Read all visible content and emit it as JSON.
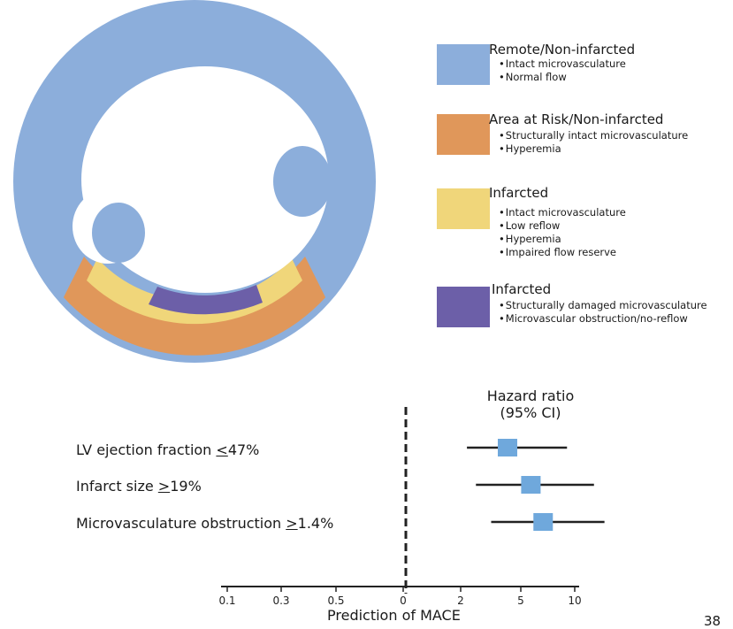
{
  "colors": {
    "remote": "#8caedb",
    "risk": "#e0975a",
    "infarct_yellow": "#f0d67a",
    "infarct_purple": "#6c5fa8"
  },
  "legend": [
    {
      "title": "Remote/Non-infarcted",
      "color": "#8caedb",
      "bullets": [
        "Intact microvasculature",
        "Normal flow"
      ]
    },
    {
      "title": "Area at Risk/Non-infarcted",
      "color": "#e0975a",
      "bullets": [
        "Structurally intact microvasculature",
        "Hyperemia"
      ]
    },
    {
      "title": "Infarcted",
      "color": "#f0d67a",
      "bullets": [
        "Intact microvasculature",
        "Low reflow",
        "Hyperemia",
        "Impaired flow reserve"
      ]
    },
    {
      "title": "Infarcted",
      "color": "#6c5fa8",
      "bullets": [
        "Structurally damaged microvasculature",
        "Microvascular obstruction/no-reflow"
      ]
    }
  ],
  "chart_data": {
    "type": "scatter",
    "header": [
      "Hazard ratio",
      "(95% CI)"
    ],
    "xlabel": "Prediction of MACE",
    "x_ticks": [
      "0.1",
      "0.3",
      "0.5",
      "0",
      "2",
      "5",
      "10"
    ],
    "rows": [
      {
        "label_pre": "LV ejection fraction ",
        "label_sym": "<",
        "label_post": "47%",
        "hr": 4.0,
        "ci_low": 2.3,
        "ci_high": 9.0
      },
      {
        "label_pre": "Infarct size ",
        "label_sym": ">",
        "label_post": "19%",
        "hr": 5.5,
        "ci_low": 2.6,
        "ci_high": 13.0
      },
      {
        "label_pre": "Microvasculature obstruction ",
        "label_sym": ">",
        "label_post": "1.4%",
        "hr": 6.5,
        "ci_low": 3.2,
        "ci_high": 15.0
      }
    ]
  },
  "page_number": "38"
}
